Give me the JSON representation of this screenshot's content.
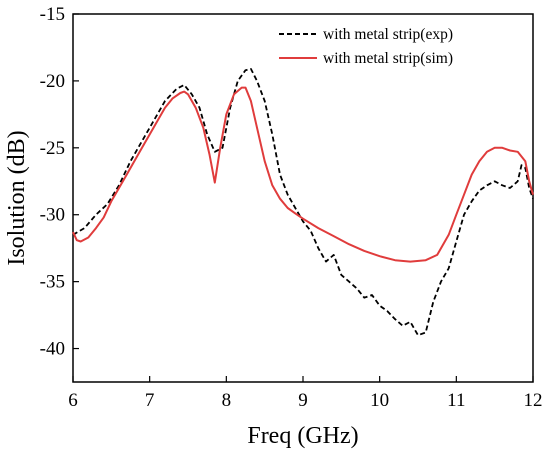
{
  "chart_data": {
    "type": "line",
    "xlabel": "Freq (GHz)",
    "ylabel": "Isolution (dB)",
    "xlim": [
      6,
      12
    ],
    "ylim": [
      -42.5,
      -15
    ],
    "x_ticks": [
      6,
      7,
      8,
      9,
      10,
      11,
      12
    ],
    "y_ticks": [
      -40,
      -35,
      -30,
      -25,
      -20,
      -15
    ],
    "grid": false,
    "legend_position": "top-right",
    "series": [
      {
        "name": "with metal strip(exp)",
        "color": "#000000",
        "style": "dashed",
        "points": [
          [
            6.0,
            -31.5
          ],
          [
            6.15,
            -31.0
          ],
          [
            6.3,
            -30.0
          ],
          [
            6.45,
            -29.2
          ],
          [
            6.6,
            -27.8
          ],
          [
            6.75,
            -26.0
          ],
          [
            6.9,
            -24.5
          ],
          [
            7.05,
            -23.0
          ],
          [
            7.2,
            -21.5
          ],
          [
            7.35,
            -20.6
          ],
          [
            7.45,
            -20.3
          ],
          [
            7.55,
            -21.0
          ],
          [
            7.65,
            -22.0
          ],
          [
            7.75,
            -24.0
          ],
          [
            7.85,
            -25.3
          ],
          [
            7.95,
            -25.0
          ],
          [
            8.05,
            -22.0
          ],
          [
            8.15,
            -20.0
          ],
          [
            8.25,
            -19.2
          ],
          [
            8.32,
            -19.1
          ],
          [
            8.4,
            -20.0
          ],
          [
            8.5,
            -21.5
          ],
          [
            8.6,
            -24.0
          ],
          [
            8.7,
            -27.0
          ],
          [
            8.8,
            -28.5
          ],
          [
            8.9,
            -29.5
          ],
          [
            9.0,
            -30.5
          ],
          [
            9.1,
            -31.2
          ],
          [
            9.2,
            -32.5
          ],
          [
            9.3,
            -33.5
          ],
          [
            9.4,
            -33.0
          ],
          [
            9.5,
            -34.5
          ],
          [
            9.6,
            -35.0
          ],
          [
            9.7,
            -35.5
          ],
          [
            9.8,
            -36.2
          ],
          [
            9.9,
            -36.0
          ],
          [
            10.0,
            -36.8
          ],
          [
            10.1,
            -37.2
          ],
          [
            10.2,
            -37.8
          ],
          [
            10.3,
            -38.3
          ],
          [
            10.4,
            -38.0
          ],
          [
            10.5,
            -39.0
          ],
          [
            10.6,
            -38.8
          ],
          [
            10.7,
            -36.5
          ],
          [
            10.8,
            -35.0
          ],
          [
            10.9,
            -34.0
          ],
          [
            11.0,
            -32.0
          ],
          [
            11.1,
            -30.0
          ],
          [
            11.2,
            -29.0
          ],
          [
            11.3,
            -28.2
          ],
          [
            11.4,
            -27.8
          ],
          [
            11.5,
            -27.5
          ],
          [
            11.6,
            -27.8
          ],
          [
            11.7,
            -28.0
          ],
          [
            11.8,
            -27.5
          ],
          [
            11.85,
            -26.3
          ],
          [
            11.9,
            -26.5
          ],
          [
            11.95,
            -28.0
          ],
          [
            12.0,
            -28.8
          ]
        ]
      },
      {
        "name": "with metal strip(sim)",
        "color": "#e03c3c",
        "style": "solid",
        "points": [
          [
            6.0,
            -31.3
          ],
          [
            6.05,
            -31.9
          ],
          [
            6.1,
            -32.0
          ],
          [
            6.2,
            -31.7
          ],
          [
            6.3,
            -31.0
          ],
          [
            6.4,
            -30.2
          ],
          [
            6.5,
            -29.0
          ],
          [
            6.6,
            -28.0
          ],
          [
            6.7,
            -27.0
          ],
          [
            6.8,
            -26.0
          ],
          [
            6.9,
            -25.0
          ],
          [
            7.0,
            -24.0
          ],
          [
            7.1,
            -23.0
          ],
          [
            7.2,
            -22.0
          ],
          [
            7.3,
            -21.3
          ],
          [
            7.4,
            -20.9
          ],
          [
            7.45,
            -20.8
          ],
          [
            7.5,
            -21.0
          ],
          [
            7.6,
            -22.0
          ],
          [
            7.7,
            -23.5
          ],
          [
            7.78,
            -25.5
          ],
          [
            7.85,
            -27.6
          ],
          [
            7.92,
            -25.0
          ],
          [
            8.0,
            -22.5
          ],
          [
            8.1,
            -21.0
          ],
          [
            8.2,
            -20.5
          ],
          [
            8.25,
            -20.5
          ],
          [
            8.32,
            -21.5
          ],
          [
            8.4,
            -23.5
          ],
          [
            8.5,
            -26.0
          ],
          [
            8.6,
            -27.8
          ],
          [
            8.7,
            -28.8
          ],
          [
            8.8,
            -29.5
          ],
          [
            8.9,
            -29.9
          ],
          [
            9.0,
            -30.3
          ],
          [
            9.2,
            -31.0
          ],
          [
            9.4,
            -31.6
          ],
          [
            9.6,
            -32.2
          ],
          [
            9.8,
            -32.7
          ],
          [
            10.0,
            -33.1
          ],
          [
            10.2,
            -33.4
          ],
          [
            10.4,
            -33.5
          ],
          [
            10.6,
            -33.4
          ],
          [
            10.75,
            -33.0
          ],
          [
            10.9,
            -31.5
          ],
          [
            11.0,
            -30.0
          ],
          [
            11.1,
            -28.5
          ],
          [
            11.2,
            -27.0
          ],
          [
            11.3,
            -26.0
          ],
          [
            11.4,
            -25.3
          ],
          [
            11.5,
            -25.0
          ],
          [
            11.6,
            -25.0
          ],
          [
            11.7,
            -25.2
          ],
          [
            11.8,
            -25.3
          ],
          [
            11.9,
            -26.0
          ],
          [
            11.95,
            -27.5
          ],
          [
            12.0,
            -28.5
          ]
        ]
      }
    ]
  }
}
